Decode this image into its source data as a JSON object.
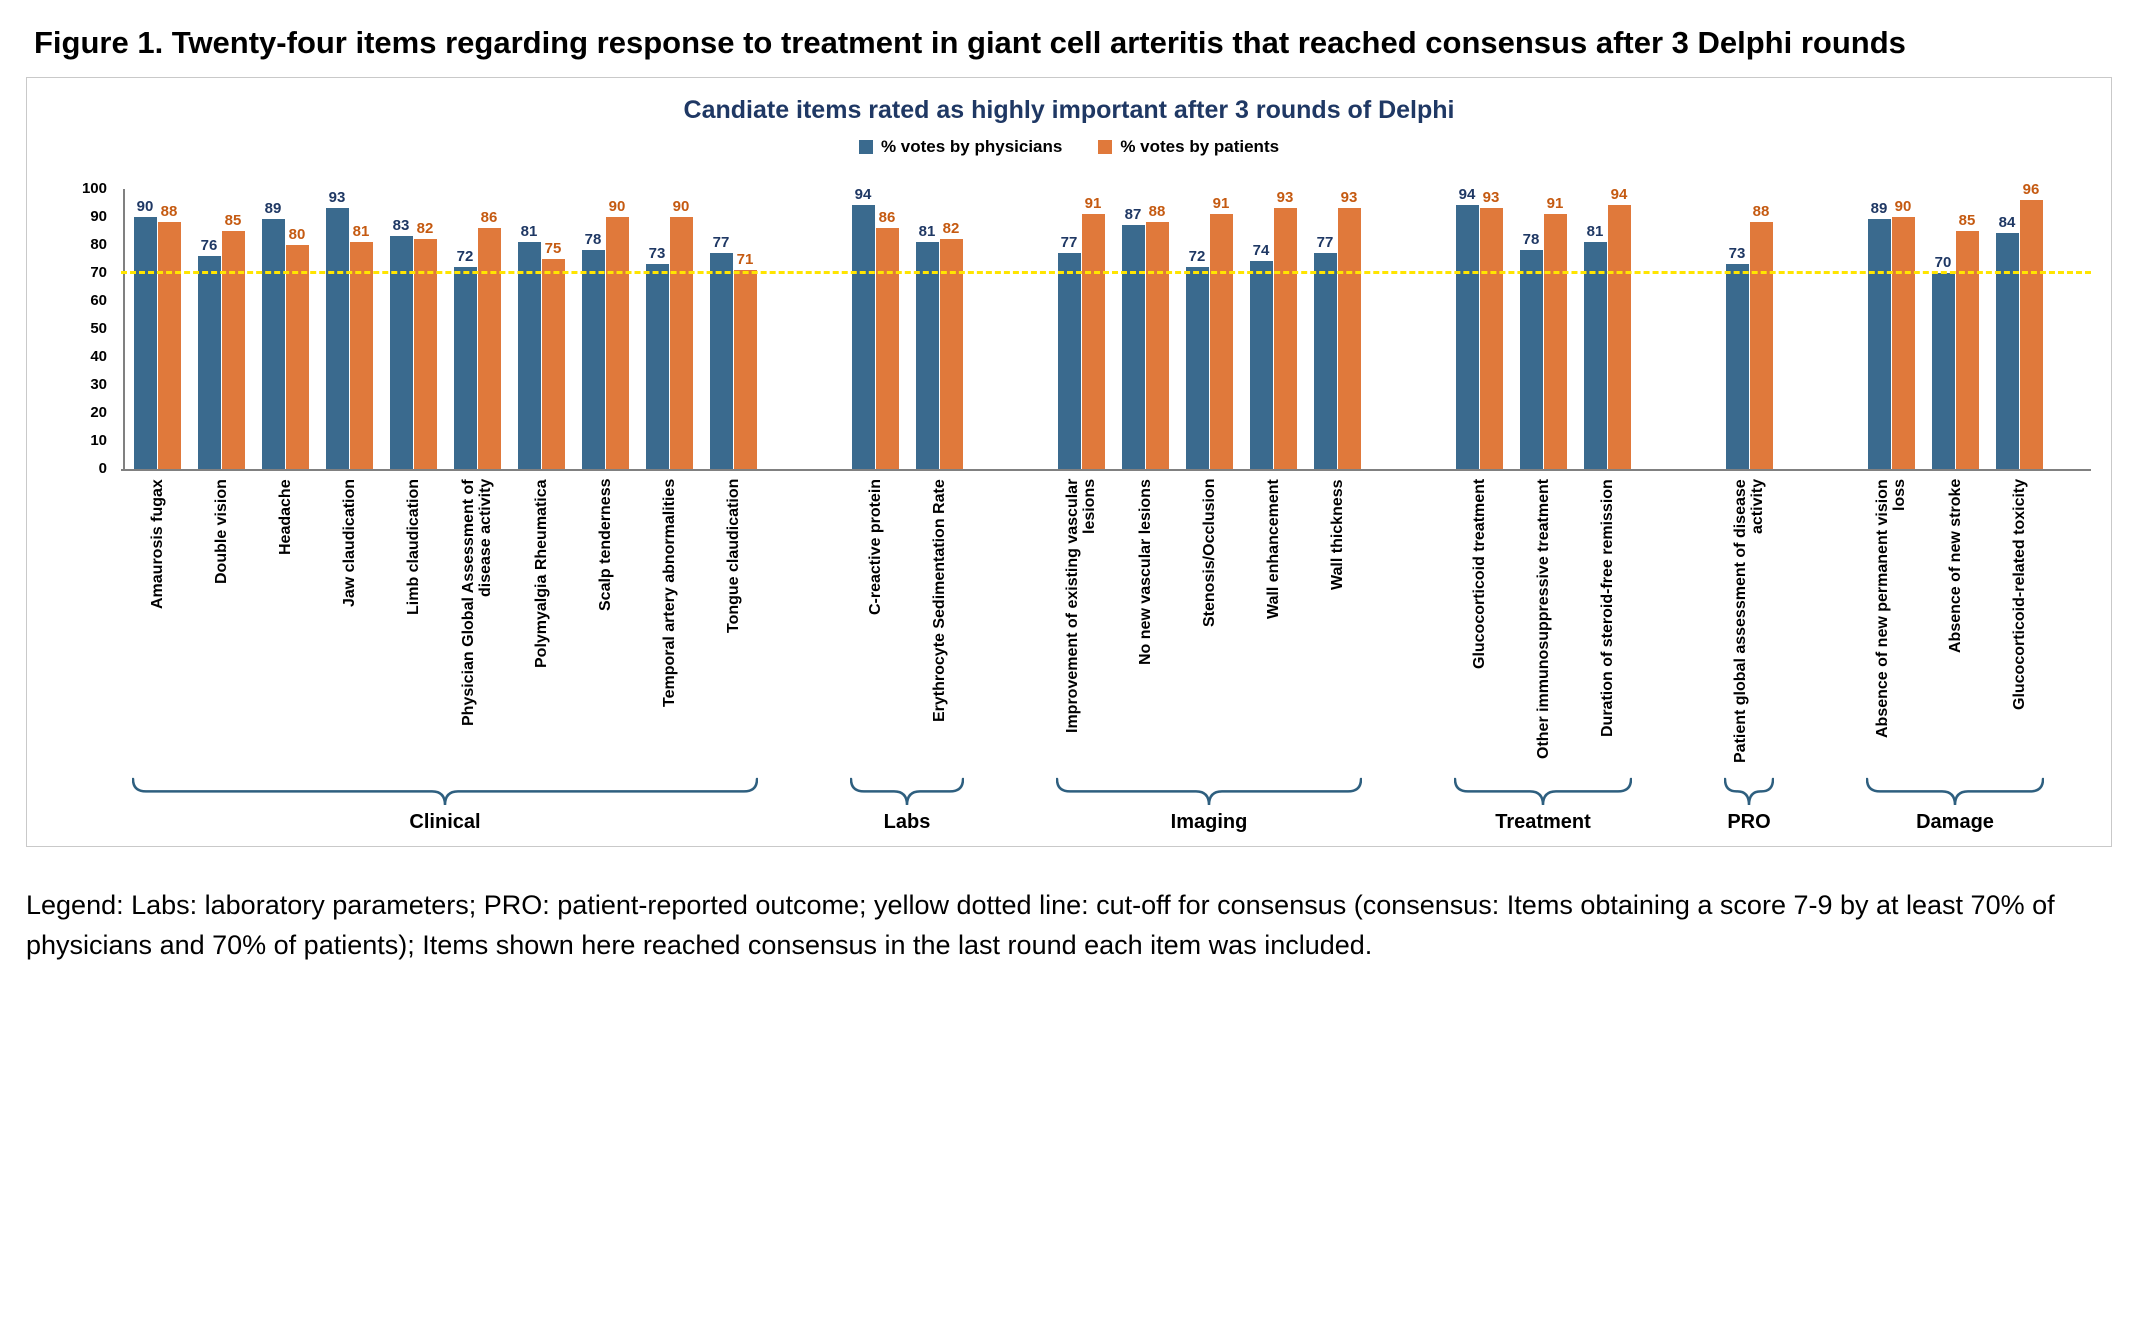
{
  "figure_title": "Figure 1. Twenty-four items regarding response to treatment in giant cell arteritis that reached consensus after 3 Delphi rounds",
  "footer_legend": "Legend: Labs: laboratory parameters; PRO: patient-reported outcome; yellow dotted line: cut-off for consensus (consensus: Items obtaining a score 7-9 by at least 70% of physicians and 70% of patients); Items shown here reached consensus in the last round each item was included.",
  "chart_data": {
    "type": "bar",
    "title": "Candiate items rated as highly important after 3 rounds of Delphi",
    "ylabel": "",
    "ylim": [
      0,
      100
    ],
    "yticks": [
      0,
      10,
      20,
      30,
      40,
      50,
      60,
      70,
      80,
      90,
      100
    ],
    "legend_position": "top",
    "grid": false,
    "title_color": "#1f3864",
    "brace_color": "#2e5f7f",
    "cutoff_line": {
      "value": 70,
      "style": "dashed",
      "color": "#ffe500",
      "meaning": "cut-off for consensus"
    },
    "categories": [
      "Amaurosis fugax",
      "Double vision",
      "Headache",
      "Jaw claudication",
      "Limb claudication",
      "Physician Global Assessment of disease activity",
      "Polymyalgia Rheumatica",
      "Scalp tenderness",
      "Temporal artery abnormalities",
      "Tongue claudication",
      "C-reactive protein",
      "Erythrocyte Sedimentation Rate",
      "Improvement of existing vascular lesions",
      "No new vascular lesions",
      "Stenosis/Occlusion",
      "Wall enhancement",
      "Wall thickness",
      "Glucocorticoid treatment",
      "Other immunosuppressive treatment",
      "Duration of steroid-free remission",
      "Patient global assessment of disease activity",
      "Absence of new permanent vision loss",
      "Absence of new stroke",
      "Glucocorticoid-related toxicity"
    ],
    "series": [
      {
        "name": "% votes by physicians",
        "color": "#3a6a8e",
        "label_color": "#1f3864",
        "values": [
          90,
          76,
          89,
          93,
          83,
          72,
          81,
          78,
          73,
          77,
          94,
          81,
          77,
          87,
          72,
          74,
          77,
          94,
          78,
          81,
          73,
          89,
          70,
          84
        ]
      },
      {
        "name": "% votes by patients",
        "color": "#e0793b",
        "label_color": "#c55a11",
        "values": [
          88,
          85,
          80,
          81,
          82,
          86,
          75,
          90,
          90,
          71,
          86,
          82,
          91,
          88,
          91,
          93,
          93,
          93,
          91,
          94,
          88,
          90,
          85,
          96
        ]
      }
    ],
    "groups": [
      {
        "label": "Clinical",
        "count": 10
      },
      {
        "label": "Labs",
        "count": 2
      },
      {
        "label": "Imaging",
        "count": 5
      },
      {
        "label": "Treatment",
        "count": 3
      },
      {
        "label": "PRO",
        "count": 1
      },
      {
        "label": "Damage",
        "count": 3
      }
    ]
  }
}
